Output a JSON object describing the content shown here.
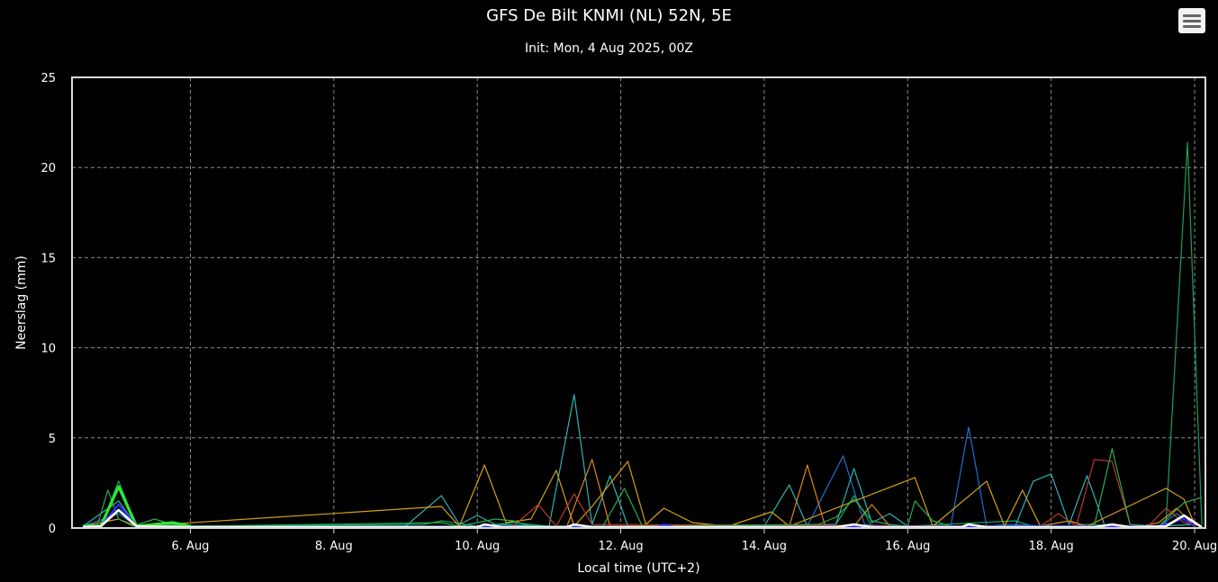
{
  "chart_data": {
    "type": "line",
    "title": "GFS De Bilt KNMI (NL) 52N, 5E",
    "subtitle": "Init: Mon, 4 Aug 2025, 00Z",
    "xlabel": "Local time (UTC+2)",
    "ylabel": "Neerslag (mm)",
    "ylim": [
      0,
      25
    ],
    "yticks": [
      0,
      5,
      10,
      15,
      20,
      25
    ],
    "xlim_days": [
      4.35,
      20.15
    ],
    "xticks": [
      {
        "day": 6,
        "label": "6. Aug"
      },
      {
        "day": 8,
        "label": "8. Aug"
      },
      {
        "day": 10,
        "label": "10. Aug"
      },
      {
        "day": 12,
        "label": "12. Aug"
      },
      {
        "day": 14,
        "label": "14. Aug"
      },
      {
        "day": 16,
        "label": "16. Aug"
      },
      {
        "day": 18,
        "label": "18. Aug"
      },
      {
        "day": 20,
        "label": "20. Aug"
      }
    ],
    "grid": true,
    "background": "#000000",
    "series": [
      {
        "color": "#1b9e5a",
        "width": 1.2,
        "points": [
          [
            4.5,
            0.1
          ],
          [
            4.75,
            0.1
          ],
          [
            5.0,
            2.6
          ],
          [
            5.25,
            0.1
          ],
          [
            5.5,
            0.2
          ],
          [
            6.0,
            0.1
          ],
          [
            9.25,
            0.2
          ],
          [
            9.5,
            0.4
          ],
          [
            10.0,
            0.1
          ],
          [
            10.5,
            0.3
          ],
          [
            11.0,
            0.1
          ],
          [
            11.5,
            0.1
          ],
          [
            12.0,
            0.1
          ],
          [
            15.0,
            0.2
          ],
          [
            15.25,
            1.8
          ],
          [
            15.5,
            0.1
          ],
          [
            16.0,
            0.1
          ],
          [
            17.5,
            0.4
          ],
          [
            17.75,
            0.1
          ],
          [
            18.25,
            0.1
          ],
          [
            18.5,
            0.2
          ],
          [
            19.0,
            0.1
          ],
          [
            19.5,
            0.1
          ],
          [
            19.6,
            0.3
          ],
          [
            19.9,
            21.4
          ],
          [
            20.1,
            0.2
          ]
        ]
      },
      {
        "color": "#1f6fd1",
        "width": 1.2,
        "points": [
          [
            4.5,
            0.1
          ],
          [
            5.0,
            0.8
          ],
          [
            5.25,
            0.1
          ],
          [
            11.5,
            0.1
          ],
          [
            12.5,
            0.1
          ],
          [
            12.6,
            0.2
          ],
          [
            13.0,
            0.1
          ],
          [
            14.6,
            0.1
          ],
          [
            15.1,
            4.0
          ],
          [
            15.4,
            0.2
          ],
          [
            15.7,
            0.1
          ],
          [
            16.25,
            0.1
          ],
          [
            16.6,
            0.1
          ],
          [
            16.85,
            5.6
          ],
          [
            17.1,
            0.1
          ],
          [
            17.4,
            0.2
          ],
          [
            18.0,
            0.1
          ],
          [
            19.0,
            0.1
          ],
          [
            19.5,
            0.1
          ],
          [
            19.75,
            0.8
          ],
          [
            20.0,
            0.1
          ]
        ]
      },
      {
        "color": "#2fb3b3",
        "width": 1.2,
        "points": [
          [
            4.5,
            0.1
          ],
          [
            5.0,
            1.5
          ],
          [
            5.25,
            0.1
          ],
          [
            9.0,
            0.1
          ],
          [
            9.5,
            1.8
          ],
          [
            9.75,
            0.2
          ],
          [
            10.0,
            0.7
          ],
          [
            10.25,
            0.2
          ],
          [
            11.0,
            0.1
          ],
          [
            11.35,
            7.4
          ],
          [
            11.6,
            0.2
          ],
          [
            11.85,
            2.9
          ],
          [
            12.1,
            0.1
          ],
          [
            14.0,
            0.1
          ],
          [
            14.35,
            2.4
          ],
          [
            14.6,
            0.1
          ],
          [
            15.0,
            0.2
          ],
          [
            15.25,
            3.3
          ],
          [
            15.5,
            0.3
          ],
          [
            15.75,
            0.8
          ],
          [
            16.0,
            0.1
          ],
          [
            17.5,
            0.1
          ],
          [
            17.75,
            2.6
          ],
          [
            18.0,
            3.0
          ],
          [
            18.25,
            0.2
          ],
          [
            18.5,
            2.9
          ],
          [
            18.75,
            0.1
          ],
          [
            19.5,
            0.1
          ],
          [
            20.0,
            0.2
          ]
        ]
      },
      {
        "color": "#d4a017",
        "width": 1.2,
        "points": [
          [
            4.5,
            0.1
          ],
          [
            5.0,
            0.5
          ],
          [
            5.25,
            0.1
          ],
          [
            9.5,
            1.2
          ],
          [
            9.75,
            0.1
          ],
          [
            10.1,
            3.5
          ],
          [
            10.4,
            0.3
          ],
          [
            10.75,
            0.5
          ],
          [
            11.1,
            3.2
          ],
          [
            11.35,
            0.1
          ],
          [
            11.6,
            1.2
          ],
          [
            12.1,
            3.7
          ],
          [
            12.35,
            0.2
          ],
          [
            12.6,
            1.1
          ],
          [
            13.0,
            0.3
          ],
          [
            13.5,
            0.1
          ],
          [
            14.1,
            0.9
          ],
          [
            14.35,
            0.1
          ],
          [
            16.1,
            2.8
          ],
          [
            16.35,
            0.1
          ],
          [
            17.1,
            2.6
          ],
          [
            17.35,
            0.1
          ],
          [
            17.6,
            2.1
          ],
          [
            17.85,
            0.1
          ],
          [
            18.25,
            0.4
          ],
          [
            18.5,
            0.1
          ],
          [
            19.6,
            2.2
          ],
          [
            19.85,
            1.6
          ],
          [
            20.0,
            0.2
          ]
        ]
      },
      {
        "color": "#e0861a",
        "width": 1.2,
        "points": [
          [
            11.25,
            0.1
          ],
          [
            11.6,
            3.8
          ],
          [
            11.85,
            0.1
          ],
          [
            14.35,
            0.1
          ],
          [
            14.6,
            3.5
          ],
          [
            14.85,
            0.1
          ],
          [
            15.25,
            0.1
          ],
          [
            15.5,
            1.3
          ],
          [
            15.75,
            0.1
          ],
          [
            16.0,
            0.1
          ],
          [
            16.25,
            0.1
          ],
          [
            17.0,
            0.1
          ],
          [
            18.0,
            0.1
          ],
          [
            19.25,
            0.1
          ],
          [
            19.5,
            0.3
          ],
          [
            19.75,
            1.1
          ],
          [
            20.0,
            0.1
          ]
        ]
      },
      {
        "color": "#c0392b",
        "width": 1.2,
        "points": [
          [
            10.5,
            0.1
          ],
          [
            10.85,
            1.3
          ],
          [
            11.1,
            0.1
          ],
          [
            11.35,
            1.9
          ],
          [
            11.6,
            0.2
          ],
          [
            17.85,
            0.1
          ],
          [
            18.1,
            0.8
          ],
          [
            18.35,
            0.1
          ],
          [
            18.6,
            3.8
          ],
          [
            18.85,
            3.7
          ],
          [
            19.1,
            0.2
          ],
          [
            19.35,
            0.1
          ],
          [
            19.6,
            1.1
          ],
          [
            19.85,
            0.3
          ],
          [
            20.1,
            0.1
          ]
        ]
      },
      {
        "color": "#27ae4f",
        "width": 1.2,
        "points": [
          [
            4.5,
            0.1
          ],
          [
            4.7,
            0.1
          ],
          [
            4.85,
            2.1
          ],
          [
            5.0,
            0.5
          ],
          [
            5.2,
            0.1
          ],
          [
            5.5,
            0.5
          ],
          [
            5.75,
            0.2
          ],
          [
            6.0,
            0.1
          ],
          [
            9.5,
            0.3
          ],
          [
            9.75,
            0.1
          ],
          [
            10.25,
            0.5
          ],
          [
            10.5,
            0.4
          ],
          [
            10.75,
            0.1
          ],
          [
            11.75,
            0.1
          ],
          [
            12.05,
            2.2
          ],
          [
            12.3,
            0.1
          ],
          [
            14.75,
            0.2
          ],
          [
            15.0,
            0.6
          ],
          [
            15.25,
            1.6
          ],
          [
            15.5,
            0.4
          ],
          [
            15.75,
            0.2
          ],
          [
            16.0,
            0.1
          ],
          [
            16.1,
            1.5
          ],
          [
            16.35,
            0.4
          ],
          [
            16.6,
            0.1
          ],
          [
            18.6,
            0.1
          ],
          [
            18.85,
            4.4
          ],
          [
            19.1,
            0.2
          ],
          [
            19.5,
            0.1
          ],
          [
            19.85,
            1.4
          ],
          [
            20.1,
            1.7
          ]
        ]
      },
      {
        "color": "#2ee82e",
        "width": 3.2,
        "points": [
          [
            4.5,
            0.1
          ],
          [
            4.75,
            0.1
          ],
          [
            5.0,
            2.3
          ],
          [
            5.25,
            0.1
          ],
          [
            5.5,
            0.2
          ],
          [
            5.75,
            0.3
          ],
          [
            6.0,
            0.1
          ]
        ]
      },
      {
        "color": "#2a2aff",
        "width": 2.2,
        "points": [
          [
            4.5,
            0.05
          ],
          [
            4.75,
            0.1
          ],
          [
            5.0,
            1.3
          ],
          [
            5.25,
            0.1
          ],
          [
            6.0,
            0.05
          ],
          [
            12.5,
            0.05
          ],
          [
            12.6,
            0.2
          ],
          [
            12.75,
            0.05
          ],
          [
            19.5,
            0.1
          ],
          [
            19.85,
            0.5
          ],
          [
            20.0,
            0.1
          ]
        ]
      },
      {
        "color": "#ffffff",
        "width": 2.6,
        "points": [
          [
            4.5,
            0.05
          ],
          [
            4.75,
            0.1
          ],
          [
            5.0,
            1.0
          ],
          [
            5.25,
            0.1
          ],
          [
            6.0,
            0.05
          ],
          [
            10.0,
            0.05
          ],
          [
            10.1,
            0.2
          ],
          [
            10.35,
            0.05
          ],
          [
            11.25,
            0.05
          ],
          [
            11.35,
            0.2
          ],
          [
            11.6,
            0.05
          ],
          [
            15.0,
            0.05
          ],
          [
            15.25,
            0.2
          ],
          [
            15.5,
            0.05
          ],
          [
            16.75,
            0.05
          ],
          [
            16.85,
            0.2
          ],
          [
            17.1,
            0.05
          ],
          [
            18.6,
            0.05
          ],
          [
            18.85,
            0.2
          ],
          [
            19.1,
            0.05
          ],
          [
            19.6,
            0.1
          ],
          [
            19.85,
            0.7
          ],
          [
            20.1,
            0.05
          ]
        ]
      }
    ]
  },
  "menu": {
    "icon": "hamburger-menu-icon"
  }
}
